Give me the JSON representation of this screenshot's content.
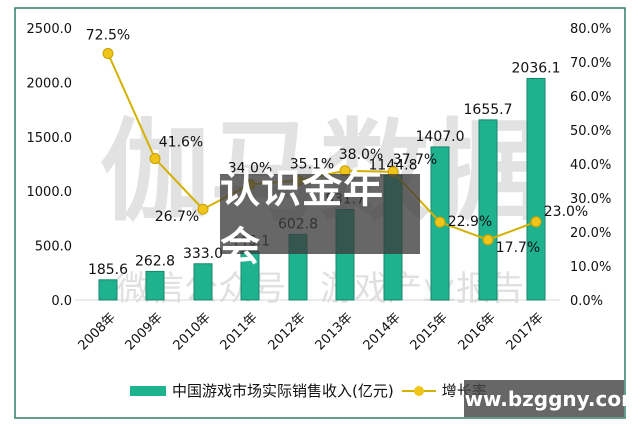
{
  "chart_data": {
    "type": "bar+line",
    "title": "",
    "categories": [
      "2008年",
      "2009年",
      "2010年",
      "2011年",
      "2012年",
      "2013年",
      "2014年",
      "2015年",
      "2016年",
      "2017年"
    ],
    "series": [
      {
        "name": "中国游戏市场实际销售收入(亿元)",
        "type": "bar",
        "axis": "left",
        "color": "#1fb28f",
        "values": [
          185.6,
          262.8,
          333.0,
          446.1,
          602.8,
          831.7,
          1144.8,
          1407.0,
          1655.7,
          2036.1
        ],
        "labels": [
          "185.6",
          "262.8",
          "333.0",
          "446.1",
          "602.8",
          "831.7",
          "1144.8",
          "1407.0",
          "1655.7",
          "2036.1"
        ]
      },
      {
        "name": "增长率",
        "type": "line",
        "axis": "right",
        "color": "#d4b000",
        "marker_color": "#f0c419",
        "values": [
          72.5,
          41.6,
          26.7,
          34.0,
          35.1,
          38.0,
          37.7,
          22.9,
          17.7,
          23.0
        ],
        "labels": [
          "72.5%",
          "41.6%",
          "26.7%",
          "34.0%",
          "35.1%",
          "38.0%",
          "37.7%",
          "22.9%",
          "17.7%",
          "23.0%"
        ]
      }
    ],
    "left_axis": {
      "ticks": [
        "0.0",
        "500.0",
        "1000.0",
        "1500.0",
        "2000.0",
        "2500.0"
      ],
      "range": [
        0,
        2500
      ]
    },
    "right_axis": {
      "ticks": [
        "0.0%",
        "10.0%",
        "20.0%",
        "30.0%",
        "40.0%",
        "50.0%",
        "60.0%",
        "70.0%",
        "80.0%"
      ],
      "range": [
        0,
        80
      ]
    },
    "xlabel": "",
    "ylabel": "",
    "legend_position": "bottom",
    "grid": false
  },
  "legend": {
    "bar_label": "中国游戏市场实际销售收入(亿元)",
    "line_label": "增长率"
  },
  "overlay": {
    "title": "认识金年会",
    "site": "www.bzggny.com"
  },
  "watermark": {
    "big": "伽马数据",
    "small": "微信公众号：游戏产业报告"
  },
  "colors": {
    "bar": "#1fb28f",
    "bar_edge": "#17866b",
    "line": "#d4b000",
    "marker": "#f0c419",
    "frame": "#2e7d6b"
  }
}
